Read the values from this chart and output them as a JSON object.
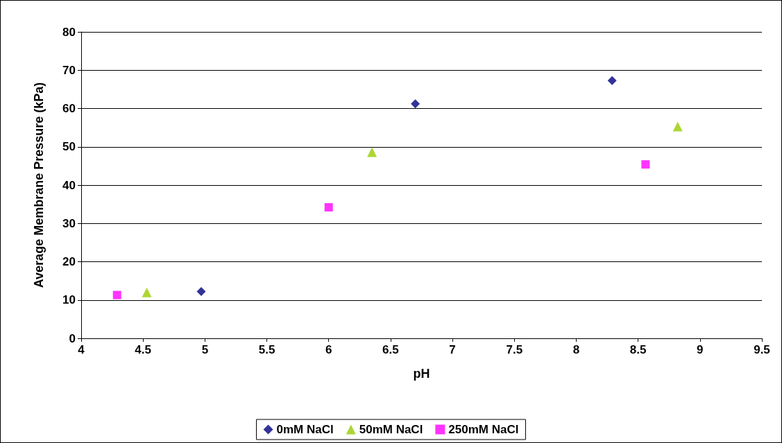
{
  "chart_data": {
    "type": "scatter",
    "xlabel": "pH",
    "ylabel": "Average Membrane Pressure (kPa)",
    "series": [
      {
        "name": "0mM NaCl",
        "color": "#000080",
        "marker": "diamond",
        "x": [
          4.97,
          6.7,
          8.29
        ],
        "values": [
          12.2,
          61.2,
          67.3
        ]
      },
      {
        "name": "50mM NaCl",
        "color": "#99cc00",
        "marker": "triangle",
        "x": [
          4.53,
          6.35,
          8.82
        ],
        "values": [
          12.0,
          48.6,
          55.3
        ]
      },
      {
        "name": "250mM NaCl",
        "color": "#ff00ff",
        "marker": "square",
        "x": [
          4.29,
          6.0,
          8.56
        ],
        "values": [
          11.3,
          34.2,
          45.4
        ]
      }
    ],
    "xlim": [
      4,
      9.5
    ],
    "xticks": [
      4,
      4.5,
      5,
      5.5,
      6,
      6.5,
      7,
      7.5,
      8,
      8.5,
      9,
      9.5
    ],
    "ylim": [
      0,
      80
    ],
    "yticks": [
      0,
      10,
      20,
      30,
      40,
      50,
      60,
      70,
      80
    ],
    "grid": "y",
    "legend": "bottom"
  }
}
